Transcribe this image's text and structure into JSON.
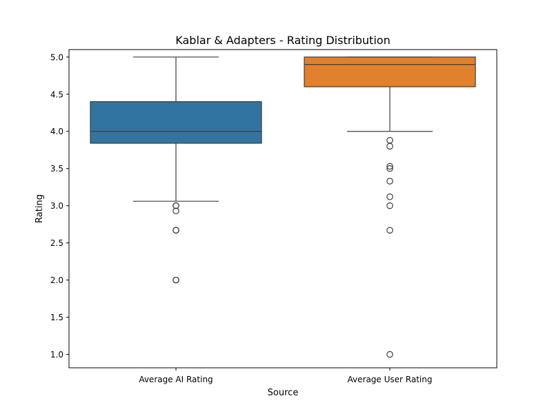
{
  "chart_data": {
    "type": "box",
    "title": "Kablar & Adapters - Rating Distribution",
    "xlabel": "Source",
    "ylabel": "Rating",
    "ylim": [
      0.82,
      5.1
    ],
    "yticks": [
      1.0,
      1.5,
      2.0,
      2.5,
      3.0,
      3.5,
      4.0,
      4.5,
      5.0
    ],
    "ytick_labels": [
      "1.0",
      "1.5",
      "2.0",
      "2.5",
      "3.0",
      "3.5",
      "4.0",
      "4.5",
      "5.0"
    ],
    "grid": false,
    "categories": [
      "Average AI Rating",
      "Average User Rating"
    ],
    "boxes": [
      {
        "category": "Average AI Rating",
        "color": "#3274a1",
        "whisker_low": 3.06,
        "q1": 3.84,
        "median": 4.0,
        "q3": 4.4,
        "whisker_high": 5.0,
        "outliers": [
          3.0,
          3.0,
          2.93,
          2.67,
          2.67,
          2.0,
          2.0
        ]
      },
      {
        "category": "Average User Rating",
        "color": "#e1812c",
        "whisker_low": 4.0,
        "q1": 4.6,
        "median": 4.9,
        "q3": 5.0,
        "whisker_high": 5.0,
        "outliers": [
          3.88,
          3.8,
          3.53,
          3.5,
          3.33,
          3.12,
          3.0,
          2.67,
          1.0
        ]
      }
    ]
  }
}
